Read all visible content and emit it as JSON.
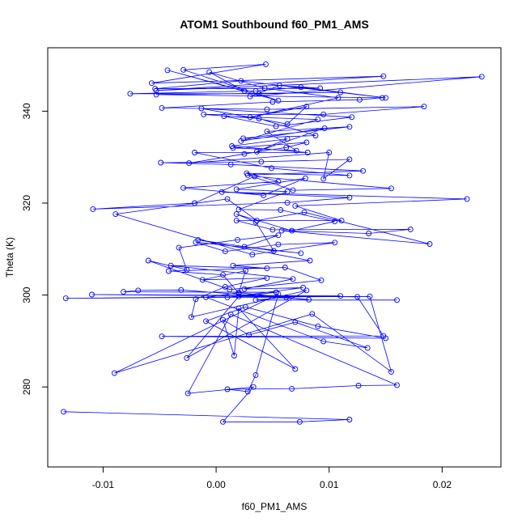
{
  "chart_data": {
    "type": "scatter",
    "title": "ATOM1 Southbound f60_PM1_AMS",
    "xlabel": "f60_PM1_AMS",
    "ylabel": "Theta (K)",
    "xlim": [
      -0.0149,
      0.0252
    ],
    "ylim": [
      262.6,
      353.8
    ],
    "x_ticks": [
      -0.01,
      0.0,
      0.01,
      0.02
    ],
    "x_tick_labels": [
      "-0.01",
      "0.00",
      "0.01",
      "0.02"
    ],
    "y_ticks": [
      280,
      300,
      320,
      340
    ],
    "y_tick_labels": [
      "280",
      "300",
      "320",
      "340"
    ],
    "grid": false,
    "legend": "none",
    "style": "points connected by lines, open circles",
    "series": [
      {
        "color": "#0000ff",
        "points": [
          [
            -0.0135,
            274.6
          ],
          [
            0.0118,
            272.9
          ],
          [
            0.0074,
            272.4
          ],
          [
            0.0006,
            272.4
          ],
          [
            0.0033,
            280.0
          ],
          [
            -0.0025,
            278.6
          ],
          [
            0.0013,
            295.8
          ],
          [
            0.016,
            280.4
          ],
          [
            0.0126,
            280.3
          ],
          [
            0.0067,
            279.6
          ],
          [
            0.001,
            279.5
          ],
          [
            0.0028,
            279.0
          ],
          [
            0.0035,
            282.6
          ],
          [
            0.0055,
            300.2
          ],
          [
            -0.009,
            283.0
          ],
          [
            0.0085,
            295.9
          ],
          [
            0.0155,
            283.3
          ],
          [
            0.0136,
            299.7
          ],
          [
            -0.0133,
            299.3
          ],
          [
            0.011,
            299.8
          ],
          [
            -0.011,
            300.1
          ],
          [
            0.0125,
            299.6
          ],
          [
            0.0148,
            291.1
          ],
          [
            -0.0048,
            291.0
          ],
          [
            0.015,
            290.6
          ],
          [
            0.009,
            293.2
          ],
          [
            0.0026,
            297.4
          ],
          [
            -0.0009,
            294.3
          ],
          [
            0.007,
            283.9
          ],
          [
            0.002,
            297.1
          ],
          [
            0.0016,
            286.8
          ],
          [
            0.0006,
            294.6
          ],
          [
            0.0029,
            291.3
          ],
          [
            0.007,
            294.1
          ],
          [
            0.0134,
            288.5
          ],
          [
            0.0095,
            289.9
          ],
          [
            -0.0009,
            299.5
          ],
          [
            0.002,
            300.5
          ],
          [
            0.0082,
            299.0
          ],
          [
            -0.0031,
            301.1
          ],
          [
            -0.0069,
            301.0
          ],
          [
            -0.0082,
            300.7
          ],
          [
            0.0053,
            300.6
          ],
          [
            0.002,
            299.7
          ],
          [
            -0.0026,
            286.3
          ],
          [
            0.008,
            301.0
          ],
          [
            -0.0022,
            295.2
          ],
          [
            -0.0018,
            299.1
          ],
          [
            0.0008,
            301.8
          ],
          [
            0.0045,
            303.7
          ],
          [
            -0.0012,
            303.3
          ],
          [
            0.0026,
            305.3
          ],
          [
            0.002,
            300.4
          ],
          [
            0.0006,
            304.4
          ],
          [
            -0.0042,
            305.2
          ],
          [
            0.0061,
            306.0
          ],
          [
            0.0093,
            303.2
          ],
          [
            0.0012,
            301.2
          ],
          [
            -0.006,
            307.5
          ],
          [
            -0.0026,
            305.5
          ],
          [
            -0.0033,
            310.3
          ],
          [
            0.0019,
            312.0
          ],
          [
            0.0055,
            313.0
          ],
          [
            0.0025,
            310.5
          ],
          [
            0.0075,
            309.1
          ],
          [
            -0.0018,
            311.5
          ],
          [
            0.0008,
            309.5
          ],
          [
            0.0055,
            311.0
          ],
          [
            0.0105,
            311.4
          ],
          [
            0.0032,
            308.8
          ],
          [
            -0.0089,
            317.6
          ],
          [
            0.001,
            320.9
          ],
          [
            0.0036,
            316.2
          ],
          [
            0.0078,
            318.0
          ],
          [
            0.0189,
            311.1
          ],
          [
            0.0058,
            314.0
          ],
          [
            0.0135,
            313.4
          ],
          [
            0.0172,
            314.3
          ],
          [
            0.005,
            314.2
          ],
          [
            0.0018,
            316.2
          ],
          [
            0.0111,
            316.2
          ],
          [
            0.007,
            319.4
          ],
          [
            0.0222,
            320.9
          ],
          [
            0.0005,
            322.4
          ],
          [
            0.0118,
            321.2
          ],
          [
            0.0063,
            320.1
          ],
          [
            -0.0109,
            318.7
          ],
          [
            -0.0019,
            320.0
          ],
          [
            0.0034,
            325.8
          ],
          [
            0.0155,
            323.2
          ],
          [
            0.0068,
            322.8
          ],
          [
            0.0028,
            326.1
          ],
          [
            0.013,
            327.0
          ],
          [
            0.0013,
            328.4
          ],
          [
            -0.0049,
            328.8
          ],
          [
            0.004,
            329.0
          ],
          [
            0.0118,
            329.5
          ],
          [
            0.0095,
            325.3
          ],
          [
            0.01,
            331.0
          ],
          [
            -0.0024,
            328.7
          ],
          [
            0.0025,
            330.7
          ],
          [
            0.0062,
            332.1
          ],
          [
            0.008,
            333.2
          ],
          [
            0.0015,
            332.0
          ],
          [
            0.0071,
            331.4
          ],
          [
            0.0045,
            335.6
          ],
          [
            0.0118,
            336.6
          ],
          [
            0.0024,
            334.1
          ],
          [
            0.0088,
            334.7
          ],
          [
            0.0038,
            338.4
          ],
          [
            -0.0011,
            339.3
          ],
          [
            0.0095,
            339.3
          ],
          [
            0.0184,
            341.0
          ],
          [
            0.0045,
            340.4
          ],
          [
            -0.0048,
            340.7
          ],
          [
            0.005,
            342.0
          ],
          [
            0.0127,
            342.5
          ],
          [
            0.0147,
            342.9
          ],
          [
            -0.0053,
            343.6
          ],
          [
            0.011,
            344.1
          ],
          [
            0.0038,
            343.8
          ],
          [
            -0.0076,
            343.8
          ],
          [
            0.0035,
            344.4
          ],
          [
            0.0075,
            345.2
          ],
          [
            0.015,
            342.9
          ],
          [
            0.0022,
            346.6
          ],
          [
            -0.0054,
            344.9
          ],
          [
            0.0092,
            345.0
          ],
          [
            0.0056,
            345.6
          ],
          [
            0.003,
            343.2
          ],
          [
            0.0235,
            347.5
          ],
          [
            -0.0053,
            344.5
          ],
          [
            0.0148,
            347.6
          ],
          [
            -0.0057,
            346.1
          ],
          [
            0.0044,
            350.2
          ],
          [
            -0.0029,
            349.0
          ],
          [
            0.0055,
            342.3
          ],
          [
            -0.0043,
            348.9
          ],
          [
            0.0025,
            344.4
          ],
          [
            -0.0006,
            348.5
          ],
          [
            0.0043,
            345.0
          ],
          [
            0.0108,
            342.9
          ],
          [
            0.003,
            338.7
          ],
          [
            0.008,
            341.0
          ],
          [
            0.0063,
            337.2
          ],
          [
            -0.0013,
            340.6
          ],
          [
            0.012,
            338.7
          ],
          [
            0.0053,
            336.7
          ],
          [
            0.0007,
            338.9
          ],
          [
            0.009,
            338.2
          ],
          [
            0.0022,
            333.5
          ],
          [
            0.0096,
            336.3
          ],
          [
            0.0036,
            331.2
          ],
          [
            0.0063,
            334.0
          ],
          [
            0.0014,
            332.4
          ],
          [
            0.0081,
            331.0
          ],
          [
            -0.0019,
            331.0
          ],
          [
            0.0049,
            327.6
          ],
          [
            0.0118,
            326.0
          ],
          [
            0.0027,
            326.5
          ],
          [
            0.0055,
            324.7
          ],
          [
            -0.0029,
            323.3
          ],
          [
            0.0042,
            321.7
          ],
          [
            0.0079,
            325.4
          ],
          [
            0.0018,
            323.0
          ],
          [
            0.0063,
            322.5
          ],
          [
            0.002,
            318.6
          ],
          [
            0.0057,
            318.5
          ],
          [
            0.0105,
            316.0
          ],
          [
            0.0067,
            314.0
          ],
          [
            0.0018,
            317.6
          ],
          [
            0.0035,
            315.9
          ],
          [
            0.0051,
            309.6
          ],
          [
            -0.0016,
            312.0
          ],
          [
            0.0083,
            307.5
          ],
          [
            0.0015,
            306.4
          ],
          [
            0.0045,
            305.8
          ],
          [
            -0.004,
            306.4
          ],
          [
            0.0068,
            303.5
          ],
          [
            0.0025,
            301.3
          ],
          [
            0.0077,
            301.6
          ],
          [
            0.001,
            299.5
          ],
          [
            0.0062,
            299.5
          ],
          [
            0.0035,
            298.9
          ],
          [
            0.016,
            298.9
          ]
        ]
      }
    ]
  }
}
